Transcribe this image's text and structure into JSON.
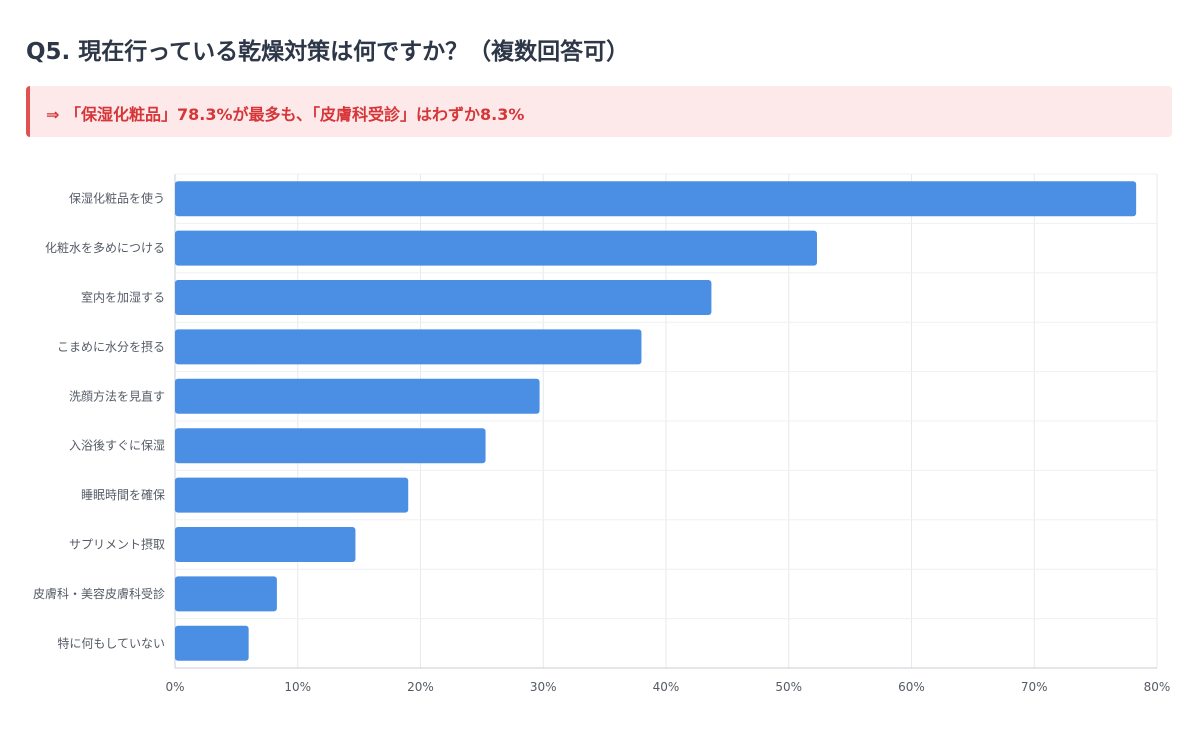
{
  "title": "Q5. 現在行っている乾燥対策は何ですか？（複数回答可）",
  "callout": "⇒ 「保湿化粧品」78.3%が最多も、「皮膚科受診」はわずか8.3%",
  "colors": {
    "bar": "#4a8fe3",
    "callout_bg": "#fde8ea",
    "callout_border": "#e05252",
    "callout_text": "#d63638"
  },
  "chart_data": {
    "type": "bar",
    "orientation": "horizontal",
    "title": "Q5. 現在行っている乾燥対策は何ですか？（複数回答可）",
    "xlabel": "",
    "ylabel": "",
    "xlim": [
      0,
      80
    ],
    "ticks": [
      "0%",
      "10%",
      "20%",
      "30%",
      "40%",
      "50%",
      "60%",
      "70%",
      "80%"
    ],
    "grid": true,
    "categories": [
      "保湿化粧品を使う",
      "化粧水を多めにつける",
      "室内を加湿する",
      "こまめに水分を摂る",
      "洗顔方法を見直す",
      "入浴後すぐに保湿",
      "睡眠時間を確保",
      "サプリメント摂取",
      "皮膚科・美容皮膚科受診",
      "特に何もしていない"
    ],
    "values": [
      78.3,
      52.3,
      43.7,
      38.0,
      29.7,
      25.3,
      19.0,
      14.7,
      8.3,
      6.0
    ]
  }
}
